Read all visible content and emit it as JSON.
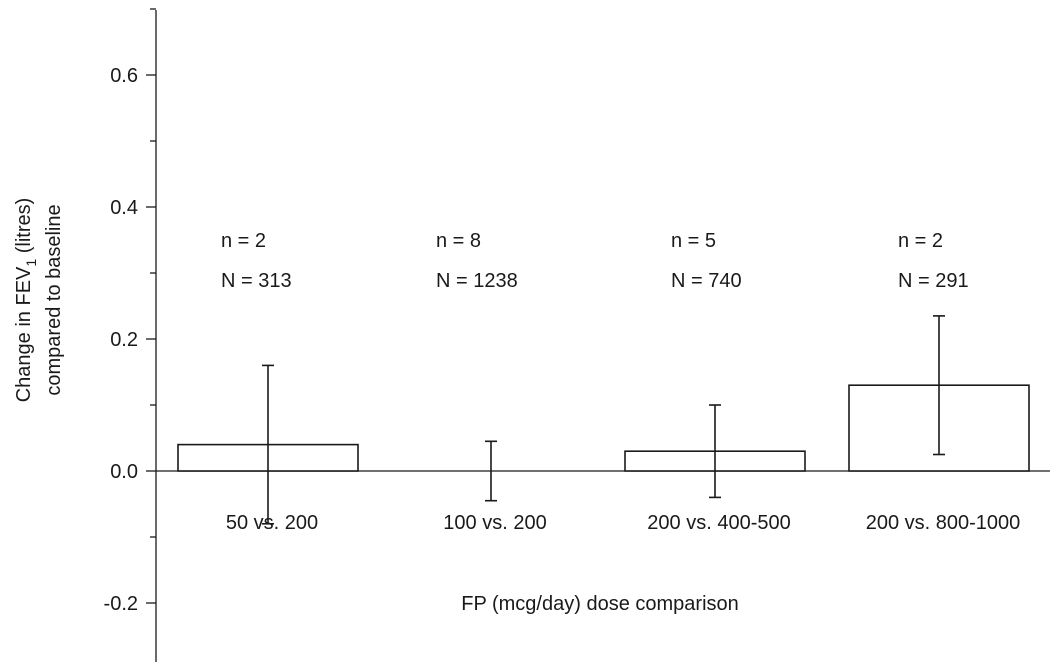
{
  "chart_data": {
    "type": "bar",
    "xlabel": "FP (mcg/day) dose comparison",
    "ylabel_line1": "Change in FEV",
    "ylabel_sub": "1",
    "ylabel_line1_tail": " (litres)",
    "ylabel_line2": "compared to baseline",
    "ylim": [
      -0.3,
      0.7
    ],
    "yticks": [
      -0.2,
      0.0,
      0.2,
      0.4,
      0.6
    ],
    "ytick_labels": [
      "-0.2",
      "0.0",
      "0.2",
      "0.4",
      "0.6"
    ],
    "yminor_step": 0.1,
    "grid": false,
    "legend": "none",
    "categories": [
      "50 vs. 200",
      "100 vs. 200",
      "200 vs. 400-500",
      "200 vs. 800-1000"
    ],
    "values": [
      0.04,
      0.0,
      0.03,
      0.13
    ],
    "error_low": [
      -0.08,
      -0.045,
      -0.04,
      0.025
    ],
    "error_high": [
      0.16,
      0.045,
      0.1,
      0.235
    ],
    "n_labels": [
      "n = 2",
      "n = 8",
      "n = 5",
      "n = 2"
    ],
    "N_labels": [
      "N = 313",
      "N = 1238",
      "N = 740",
      "N = 291"
    ]
  }
}
